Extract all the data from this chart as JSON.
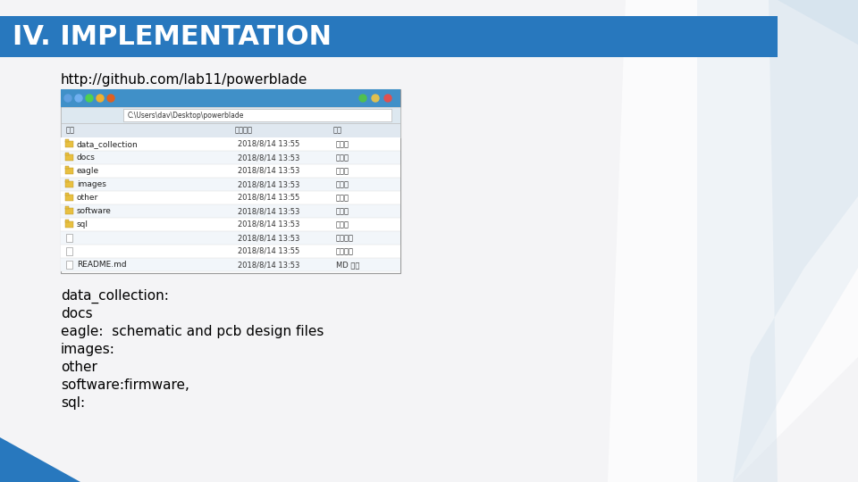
{
  "title": "IV. IMPLEMENTATION",
  "title_bg_color": "#2878BE",
  "title_text_color": "#FFFFFF",
  "slide_bg_color": "#F0F0F0",
  "url_text": "http://github.com/lab11/powerblade",
  "url_color": "#000000",
  "description_lines": [
    "data_collection:",
    "docs",
    "eagle:  schematic and pcb design files",
    "images:",
    "other",
    "software:firmware,",
    "sql:"
  ],
  "description_color": "#000000",
  "accent_color_blue": "#2878BE",
  "file_explorer": {
    "path_bar": "C:\\Users\\dav\\Desktop\\powerblade",
    "col_labels": [
      "名称",
      "修改日期",
      "类型"
    ],
    "rows": [
      [
        "data_collection",
        "2018/8/14 13:55",
        "文件夹",
        true
      ],
      [
        "docs",
        "2018/8/14 13:53",
        "文件夹",
        true
      ],
      [
        "eagle",
        "2018/8/14 13:53",
        "文件夹",
        true
      ],
      [
        "images",
        "2018/8/14 13:53",
        "文件夹",
        true
      ],
      [
        "other",
        "2018/8/14 13:55",
        "文件夹",
        true
      ],
      [
        "software",
        "2018/8/14 13:53",
        "文件夹",
        true
      ],
      [
        "sql",
        "2018/8/14 13:53",
        "文件夹",
        true
      ],
      [
        "",
        "2018/8/14 13:53",
        "文本文档",
        false
      ],
      [
        "",
        "2018/8/14 13:55",
        "文本文档",
        false
      ],
      [
        "README.md",
        "2018/8/14 13:53",
        "MD 文件",
        false
      ]
    ],
    "bg_color": "#FFFFFF",
    "border_color": "#999999",
    "header_bg": "#E0E8F0",
    "titlebar_color": "#4090C8",
    "toolbar_color": "#DDE8F0",
    "folder_color": "#E8C040",
    "folder_border": "#B89020"
  }
}
